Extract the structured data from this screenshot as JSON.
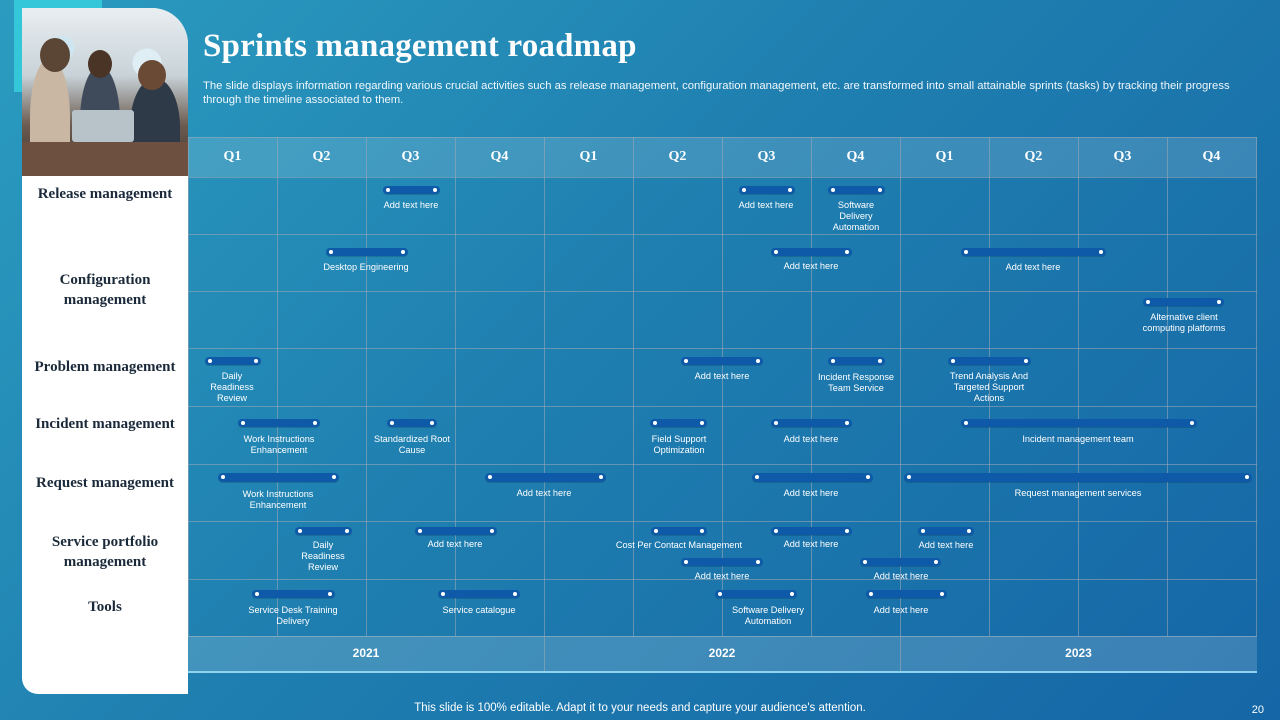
{
  "title": "Sprints management roadmap",
  "subtitle": "The slide displays information regarding various crucial activities such as release management, configuration management, etc. are transformed into small attainable sprints (tasks) by tracking their progress through the timeline associated to them.",
  "quarters": [
    "Q1",
    "Q2",
    "Q3",
    "Q4",
    "Q1",
    "Q2",
    "Q3",
    "Q4",
    "Q1",
    "Q2",
    "Q3",
    "Q4"
  ],
  "years": [
    "2021",
    "2022",
    "2023"
  ],
  "rows": [
    "Release management",
    "Configuration management",
    "Problem management",
    "Incident management",
    "Request management",
    "Service portfolio management",
    "Tools"
  ],
  "tasks": {
    "release_1": "Add text here",
    "release_2": "Add text here",
    "release_3": "Software Delivery Automation",
    "config_1": "Desktop Engineering",
    "config_2": "Add text here",
    "config_3": "Add text here",
    "config_4": "Alternative client computing platforms",
    "problem_1": "Daily Readiness Review",
    "problem_2": "Add text here",
    "problem_3": "Incident Response Team Service",
    "problem_4": "Trend Analysis And Targeted Support Actions",
    "incident_1": "Work Instructions Enhancement",
    "incident_2": "Standardized Root Cause",
    "incident_3": "Field Support Optimization",
    "incident_4": "Add text here",
    "incident_5": "Incident management team",
    "request_1": "Work Instructions Enhancement",
    "request_2": "Add text here",
    "request_3": "Add text here",
    "request_4": "Request management services",
    "portfolio_1": "Daily Readiness Review",
    "portfolio_2": "Add text here",
    "portfolio_3": "Cost Per Contact Management",
    "portfolio_4": "Add text here",
    "portfolio_5": "Add text here",
    "portfolio_6": "Add text here",
    "portfolio_7": "Add text here",
    "tools_1": "Service Desk Training Delivery",
    "tools_2": "Service catalogue",
    "tools_3": "Software Delivery Automation",
    "tools_4": "Add text here"
  },
  "footer": "This slide is 100% editable. Adapt it to your needs and capture your audience's attention.",
  "page_number": "20"
}
